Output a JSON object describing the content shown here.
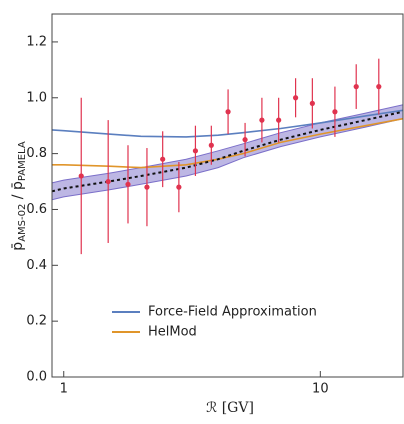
{
  "chart_data": {
    "type": "line",
    "xlabel": "ℛ [GV]",
    "ylabel": {
      "num": "p̄",
      "num_sub": "AMS-02",
      "sep": " / ",
      "den": "p̄",
      "den_sub": "PAMELA"
    },
    "log_x": true,
    "xlim": [
      0.9,
      21
    ],
    "ylim": [
      0,
      1.3
    ],
    "xticks": [
      1,
      10
    ],
    "yticks": [
      {
        "value": 0,
        "label": "0.0"
      },
      0.2,
      0.4,
      0.6,
      0.8,
      {
        "value": 1,
        "label": "1.0"
      },
      1.2
    ],
    "legend_loc": "lower center",
    "x": [
      0.9,
      1,
      1.5,
      2,
      3,
      4,
      5,
      7,
      10,
      15,
      21
    ],
    "series": [
      {
        "name": "Force-Field Approximation",
        "color": "#5b7fbf",
        "values": [
          0.885,
          0.882,
          0.87,
          0.862,
          0.86,
          0.866,
          0.875,
          0.89,
          0.91,
          0.935,
          0.955
        ]
      },
      {
        "name": "HelMod",
        "color": "#e0952a",
        "values": [
          0.76,
          0.76,
          0.755,
          0.75,
          0.76,
          0.78,
          0.8,
          0.84,
          0.87,
          0.9,
          0.925
        ]
      }
    ],
    "model": {
      "color": "#111111",
      "band_color": "#7b6fc9",
      "values": [
        0.665,
        0.675,
        0.7,
        0.72,
        0.75,
        0.78,
        0.81,
        0.85,
        0.885,
        0.92,
        0.95
      ],
      "band_lower": [
        0.635,
        0.645,
        0.67,
        0.69,
        0.72,
        0.75,
        0.785,
        0.825,
        0.86,
        0.895,
        0.925
      ],
      "band_upper": [
        0.695,
        0.705,
        0.73,
        0.75,
        0.78,
        0.81,
        0.835,
        0.875,
        0.91,
        0.945,
        0.975
      ]
    },
    "data_points": {
      "color": "#e0334f",
      "x": [
        1.17,
        1.49,
        1.78,
        2.11,
        2.43,
        2.81,
        3.26,
        3.76,
        4.37,
        5.09,
        5.92,
        6.88,
        8.01,
        9.31,
        11.4,
        13.8,
        16.9
      ],
      "values": [
        0.72,
        0.7,
        0.69,
        0.68,
        0.78,
        0.68,
        0.81,
        0.83,
        0.95,
        0.85,
        0.92,
        0.92,
        1.0,
        0.98,
        0.95,
        1.04,
        1.04
      ],
      "errors": [
        0.28,
        0.22,
        0.14,
        0.14,
        0.1,
        0.09,
        0.09,
        0.07,
        0.08,
        0.06,
        0.08,
        0.08,
        0.07,
        0.09,
        0.09,
        0.08,
        0.1
      ]
    }
  }
}
